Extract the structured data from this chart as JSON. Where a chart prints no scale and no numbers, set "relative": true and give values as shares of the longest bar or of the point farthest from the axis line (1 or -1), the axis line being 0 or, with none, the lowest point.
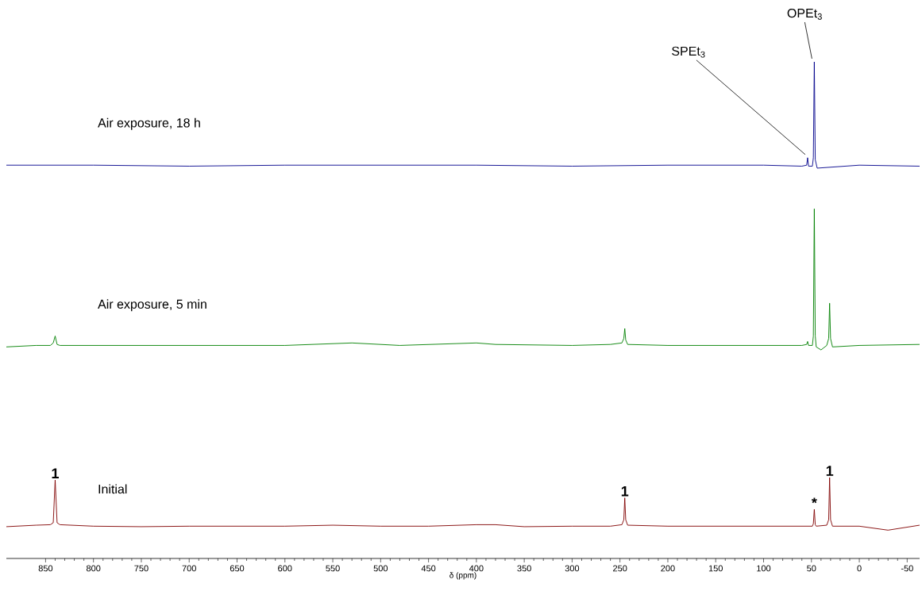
{
  "chart_data": {
    "type": "line",
    "relative": true,
    "xlim": [
      891,
      -63
    ],
    "xlabel": "δ (ppm)",
    "xticks": [
      850,
      800,
      750,
      700,
      650,
      600,
      550,
      500,
      450,
      400,
      350,
      300,
      250,
      200,
      150,
      100,
      50,
      0,
      -50
    ],
    "series": [
      {
        "name": "Air exposure, 18 h",
        "color": "#00008b",
        "x": [
          891,
          800,
          700,
          600,
          500,
          400,
          300,
          200,
          100,
          60,
          55,
          54,
          53,
          49,
          48,
          47,
          46,
          44,
          0,
          -63
        ],
        "values": [
          0.792,
          0.792,
          0.79,
          0.792,
          0.792,
          0.792,
          0.79,
          0.792,
          0.792,
          0.79,
          0.792,
          0.807,
          0.79,
          0.79,
          0.807,
          1,
          0.803,
          0.786,
          0.792,
          0.79
        ]
      },
      {
        "name": "Air exposure, 5 min",
        "color": "#008000",
        "x": [
          891,
          860,
          845,
          842,
          840,
          838,
          835,
          800,
          700,
          600,
          530,
          480,
          400,
          380,
          300,
          260,
          248,
          246,
          245,
          244,
          242,
          200,
          100,
          60,
          55,
          54,
          53,
          49,
          48,
          47,
          46,
          45,
          40,
          34,
          32,
          31,
          30,
          28,
          0,
          -63
        ],
        "values": [
          0.426,
          0.429,
          0.429,
          0.434,
          0.448,
          0.431,
          0.429,
          0.429,
          0.429,
          0.429,
          0.434,
          0.429,
          0.434,
          0.431,
          0.429,
          0.431,
          0.434,
          0.443,
          0.463,
          0.44,
          0.431,
          0.429,
          0.429,
          0.429,
          0.431,
          0.437,
          0.429,
          0.429,
          0.448,
          0.704,
          0.448,
          0.426,
          0.42,
          0.429,
          0.443,
          0.514,
          0.443,
          0.426,
          0.429,
          0.431
        ]
      },
      {
        "name": "Initial",
        "color": "#800000",
        "x": [
          891,
          860,
          845,
          842,
          840,
          838,
          835,
          800,
          750,
          700,
          650,
          600,
          550,
          500,
          450,
          400,
          380,
          350,
          300,
          260,
          248,
          246,
          245,
          244,
          242,
          200,
          150,
          100,
          60,
          49,
          48,
          47,
          46,
          45,
          34,
          32,
          31,
          30,
          28,
          0,
          -30,
          -63
        ],
        "values": [
          0.064,
          0.067,
          0.068,
          0.072,
          0.158,
          0.072,
          0.068,
          0.065,
          0.064,
          0.065,
          0.065,
          0.065,
          0.067,
          0.065,
          0.065,
          0.068,
          0.068,
          0.064,
          0.065,
          0.065,
          0.068,
          0.078,
          0.122,
          0.078,
          0.067,
          0.065,
          0.065,
          0.065,
          0.065,
          0.065,
          0.07,
          0.099,
          0.068,
          0.065,
          0.067,
          0.078,
          0.163,
          0.078,
          0.065,
          0.065,
          0.057,
          0.067
        ]
      }
    ],
    "annotations": [
      {
        "text": "SPEt$_{3}$",
        "x": 54,
        "y": 0.807
      },
      {
        "text": "OPEt$_{3}$",
        "x": 47,
        "y": 1
      },
      {
        "text": "1",
        "x": 840,
        "y": 0.158
      },
      {
        "text": "1",
        "x": 245,
        "y": 0.122
      },
      {
        "text": "*",
        "x": 47,
        "y": 0.099
      },
      {
        "text": "1",
        "x": 31,
        "y": 0.163
      }
    ]
  }
}
